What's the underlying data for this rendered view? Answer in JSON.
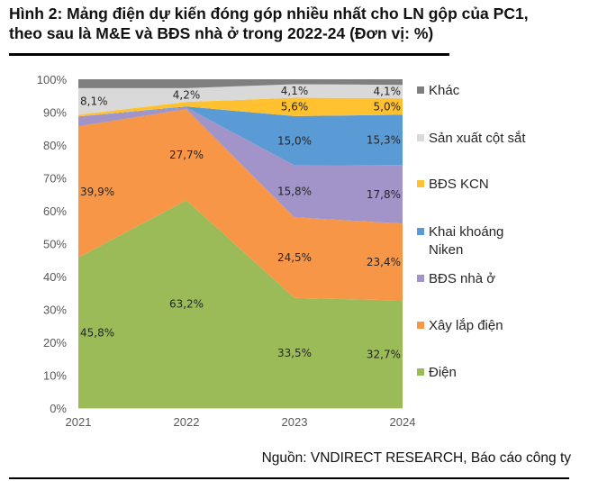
{
  "figure": {
    "title_line1": "Hình 2: Mảng điện dự kiến đóng góp nhiều nhất cho LN gộp của PC1,",
    "title_line2": "theo sau là M&E và BĐS nhà ở trong 2022-24 (Đơn vị: %)",
    "source": "Nguồn: VNDIRECT RESEARCH, Báo cáo công ty"
  },
  "chart_data": {
    "type": "area",
    "stacked": true,
    "title": "Hình 2: Mảng điện dự kiến đóng góp nhiều nhất cho LN gộp của PC1, theo sau là M&E và BĐS nhà ở trong 2022-24 (Đơn vị: %)",
    "xlabel": "",
    "ylabel": "",
    "categories": [
      "2021",
      "2022",
      "2023",
      "2024"
    ],
    "ylim": [
      0,
      100
    ],
    "yticks": [
      "0%",
      "10%",
      "20%",
      "30%",
      "40%",
      "50%",
      "60%",
      "70%",
      "80%",
      "90%",
      "100%"
    ],
    "grid": false,
    "legend_position": "right",
    "series": [
      {
        "name": "Điện",
        "color": "#9BBB59",
        "values": [
          45.8,
          63.2,
          33.5,
          32.7
        ],
        "labels": [
          "45,8%",
          "63,2%",
          "33,5%",
          "32,7%"
        ]
      },
      {
        "name": "Xây lắp điện",
        "color": "#F79646",
        "values": [
          39.9,
          27.7,
          24.5,
          23.4
        ],
        "labels": [
          "39,9%",
          "27,7%",
          "24,5%",
          "23,4%"
        ]
      },
      {
        "name": "BĐS nhà ở",
        "color": "#A294C8",
        "values": [
          3.0,
          0.5,
          15.8,
          17.8
        ],
        "labels": [
          "",
          "",
          "15,8%",
          "17,8%"
        ]
      },
      {
        "name": "Khai khoáng Niken",
        "color": "#5B9BD5",
        "values": [
          0.0,
          0.3,
          15.0,
          15.3
        ],
        "labels": [
          "",
          "",
          "15,0%",
          "15,3%"
        ]
      },
      {
        "name": "BĐS KCN",
        "color": "#FFC12F",
        "values": [
          0.5,
          1.4,
          5.6,
          5.0
        ],
        "labels": [
          "",
          "",
          "5,6%",
          "5,0%"
        ]
      },
      {
        "name": "Sản xuất cột sắt",
        "color": "#D9D9D9",
        "values": [
          8.1,
          4.2,
          4.1,
          4.1
        ],
        "labels": [
          "8,1%",
          "4,2%",
          "4,1%",
          "4,1%"
        ]
      },
      {
        "name": "Khác",
        "color": "#7F7F7F",
        "values": [
          2.7,
          2.7,
          1.5,
          1.7
        ],
        "labels": [
          "",
          "",
          "",
          ""
        ]
      }
    ],
    "legend": [
      {
        "name": "Khác",
        "lines": [
          "Khác"
        ]
      },
      {
        "name": "Sản xuất cột sắt",
        "lines": [
          "Sản xuất cột sắt"
        ]
      },
      {
        "name": "BĐS KCN",
        "lines": [
          "BĐS KCN"
        ]
      },
      {
        "name": "Khai khoáng Niken",
        "lines": [
          "Khai khoáng",
          "Niken"
        ]
      },
      {
        "name": "BĐS nhà ở",
        "lines": [
          "BĐS nhà ở"
        ]
      },
      {
        "name": "Xây lắp điện",
        "lines": [
          "Xây lắp điện"
        ]
      },
      {
        "name": "Điện",
        "lines": [
          "Điện"
        ]
      }
    ]
  }
}
